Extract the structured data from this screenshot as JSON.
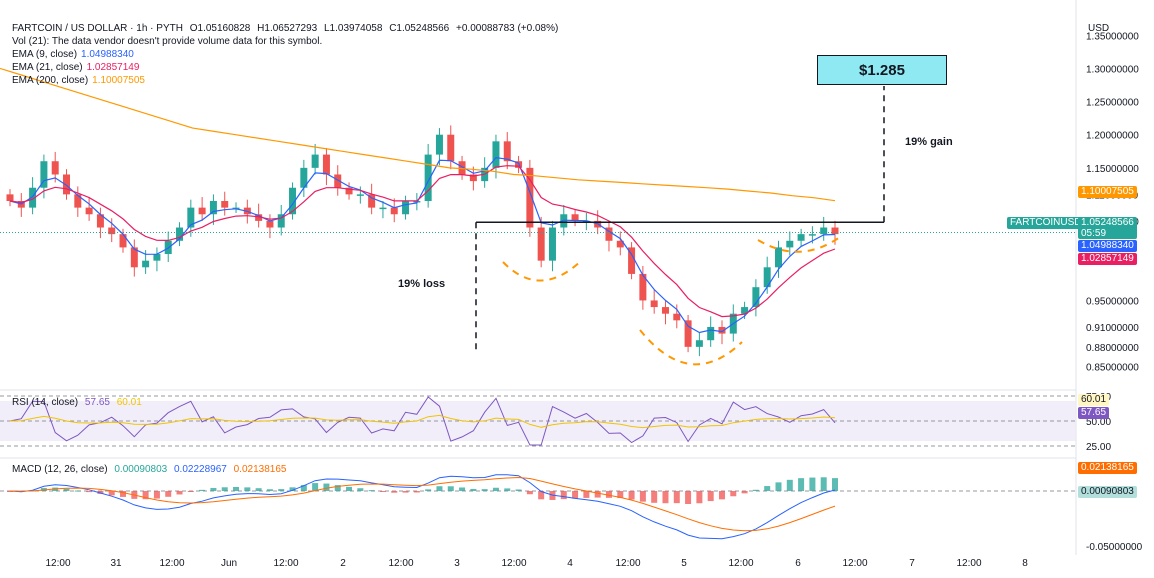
{
  "header": {
    "symbol_line": "FARTCOIN / US DOLLAR · 1h · PYTH",
    "ohlc": {
      "o": "O1.05160828",
      "h": "H1.06527293",
      "l": "L1.03974058",
      "c": "C1.05248566",
      "chg": "+0.00088783 (+0.08%)"
    },
    "vol_note": "Vol (21): The data vendor doesn't provide volume data for this symbol.",
    "ema9": {
      "label": "EMA (9, close)",
      "value": "1.04988340",
      "color": "#2962ff"
    },
    "ema21": {
      "label": "EMA (21, close)",
      "value": "1.02857149",
      "color": "#e91e63"
    },
    "ema200": {
      "label": "EMA (200, close)",
      "value": "1.10007505",
      "color": "#ff9800"
    }
  },
  "currency": "USD",
  "badges": {
    "ema200": "1.10007505",
    "price": "1.05248566",
    "countdown": "05:59",
    "ema9": "1.04988340",
    "ema21": "1.02857149",
    "ticker": "FARTCOINUSD",
    "rsi_ma": "60.01",
    "rsi": "57.65",
    "macd_signal": "0.02138165",
    "macd_hist": "0.00090803"
  },
  "annotations": {
    "target": "$1.285",
    "gain": "19% gain",
    "loss": "19% loss"
  },
  "rsi_pane": {
    "label": "RSI (14, close)",
    "value": "57.65",
    "ma": "60.01"
  },
  "macd_pane": {
    "label": "MACD (12, 26, close)",
    "hist": "0.00090803",
    "macd": "0.02228967",
    "signal": "0.02138165"
  },
  "colors": {
    "up": "#26a69a",
    "down": "#ef5350",
    "ema9": "#2962ff",
    "ema21": "#e91e63",
    "ema200": "#ff9800",
    "rsi": "#7e57c2",
    "target": "#8fe9f3"
  },
  "chart_data": {
    "type": "candlestick",
    "title": "FARTCOIN / US DOLLAR · 1h · PYTH",
    "ylabel": "USD",
    "ylim": [
      0.83,
      1.37
    ],
    "y_ticks": [
      "1.35000000",
      "1.30000000",
      "1.25000000",
      "1.20000000",
      "1.15000000",
      "1.11000000",
      "1.07000000",
      "0.95000000",
      "0.91000000",
      "0.88000000",
      "0.85000000"
    ],
    "x_ticks": [
      "12:00",
      "31",
      "12:00",
      "Jun",
      "12:00",
      "2",
      "12:00",
      "3",
      "12:00",
      "4",
      "12:00",
      "5",
      "12:00",
      "6",
      "12:00",
      "7",
      "12:00",
      "8"
    ],
    "close_path": [
      1.1,
      1.09,
      1.12,
      1.16,
      1.14,
      1.11,
      1.09,
      1.08,
      1.06,
      1.05,
      1.03,
      1.0,
      1.01,
      1.02,
      1.04,
      1.06,
      1.09,
      1.08,
      1.1,
      1.09,
      1.09,
      1.08,
      1.07,
      1.06,
      1.08,
      1.12,
      1.15,
      1.17,
      1.14,
      1.12,
      1.11,
      1.11,
      1.09,
      1.09,
      1.08,
      1.1,
      1.1,
      1.17,
      1.2,
      1.16,
      1.14,
      1.13,
      1.15,
      1.19,
      1.16,
      1.15,
      1.06,
      1.01,
      1.06,
      1.08,
      1.07,
      1.07,
      1.06,
      1.04,
      1.03,
      0.99,
      0.95,
      0.94,
      0.93,
      0.92,
      0.88,
      0.89,
      0.91,
      0.9,
      0.93,
      0.94,
      0.97,
      1.0,
      1.03,
      1.04,
      1.05,
      1.05,
      1.06,
      1.05
    ],
    "ema200_path": [
      1.3,
      1.29,
      1.28,
      1.27,
      1.26,
      1.25,
      1.24,
      1.23,
      1.22,
      1.21,
      1.205,
      1.2,
      1.195,
      1.19,
      1.185,
      1.18,
      1.175,
      1.17,
      1.165,
      1.16,
      1.155,
      1.15,
      1.148,
      1.145,
      1.14,
      1.138,
      1.135,
      1.132,
      1.13,
      1.128,
      1.126,
      1.124,
      1.122,
      1.12,
      1.118,
      1.115,
      1.112,
      1.108,
      1.105,
      1.1005
    ],
    "resistance": 1.068,
    "target": 1.285,
    "rsi": {
      "levels": [
        75,
        50,
        25
      ],
      "last": 57.65,
      "ma_last": 60.01
    },
    "macd": {
      "last_macd": 0.02228967,
      "last_signal": 0.02138165,
      "last_hist": 0.00090803,
      "tick": "-0.05000000"
    }
  }
}
